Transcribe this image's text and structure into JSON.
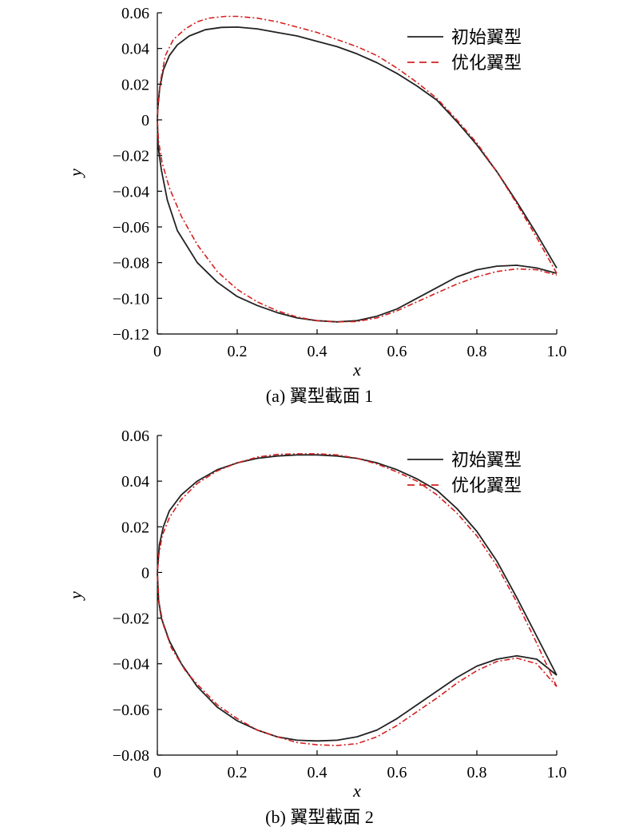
{
  "chart_data": [
    {
      "type": "line",
      "caption": "(a) 翼型截面 1",
      "xlabel": "x",
      "ylabel": "y",
      "xlim": [
        0,
        1.0
      ],
      "ylim": [
        -0.12,
        0.06
      ],
      "xticks": [
        0,
        0.2,
        0.4,
        0.6,
        0.8,
        1.0
      ],
      "xtick_labels": [
        "0",
        "0.2",
        "0.4",
        "0.6",
        "0.8",
        "1.0"
      ],
      "yticks": [
        0.06,
        0.04,
        0.02,
        0,
        -0.02,
        -0.04,
        -0.06,
        -0.08,
        -0.1,
        -0.12
      ],
      "ytick_labels": [
        "0.06",
        "0.04",
        "0.02",
        "0",
        "−0.02",
        "−0.04",
        "−0.06",
        "−0.08",
        "−0.10",
        "−0.12"
      ],
      "legend_position": "top-right",
      "series": [
        {
          "name": "初始翼型",
          "color": "#222222",
          "style": "solid",
          "points": [
            [
              1.0,
              -0.083
            ],
            [
              0.95,
              -0.064
            ],
            [
              0.9,
              -0.046
            ],
            [
              0.85,
              -0.029
            ],
            [
              0.8,
              -0.014
            ],
            [
              0.75,
              -0.001
            ],
            [
              0.7,
              0.011
            ],
            [
              0.65,
              0.019
            ],
            [
              0.6,
              0.026
            ],
            [
              0.55,
              0.032
            ],
            [
              0.5,
              0.037
            ],
            [
              0.45,
              0.041
            ],
            [
              0.4,
              0.044
            ],
            [
              0.35,
              0.047
            ],
            [
              0.3,
              0.049
            ],
            [
              0.25,
              0.051
            ],
            [
              0.2,
              0.052
            ],
            [
              0.16,
              0.0518
            ],
            [
              0.12,
              0.0505
            ],
            [
              0.08,
              0.047
            ],
            [
              0.05,
              0.042
            ],
            [
              0.03,
              0.036
            ],
            [
              0.015,
              0.028
            ],
            [
              0.006,
              0.018
            ],
            [
              0.001,
              0.006
            ],
            [
              0,
              0
            ],
            [
              0.002,
              -0.015
            ],
            [
              0.01,
              -0.028
            ],
            [
              0.025,
              -0.045
            ],
            [
              0.05,
              -0.062
            ],
            [
              0.1,
              -0.08
            ],
            [
              0.15,
              -0.091
            ],
            [
              0.2,
              -0.099
            ],
            [
              0.25,
              -0.104
            ],
            [
              0.3,
              -0.108
            ],
            [
              0.35,
              -0.111
            ],
            [
              0.4,
              -0.1125
            ],
            [
              0.45,
              -0.1132
            ],
            [
              0.5,
              -0.1125
            ],
            [
              0.55,
              -0.11
            ],
            [
              0.6,
              -0.106
            ],
            [
              0.65,
              -0.1
            ],
            [
              0.7,
              -0.094
            ],
            [
              0.75,
              -0.088
            ],
            [
              0.8,
              -0.084
            ],
            [
              0.85,
              -0.082
            ],
            [
              0.9,
              -0.0815
            ],
            [
              0.95,
              -0.083
            ],
            [
              1.0,
              -0.086
            ]
          ]
        },
        {
          "name": "优化翼型",
          "color": "#d42020",
          "style": "dashdot",
          "points": [
            [
              1.0,
              -0.086
            ],
            [
              0.95,
              -0.066
            ],
            [
              0.9,
              -0.047
            ],
            [
              0.85,
              -0.029
            ],
            [
              0.8,
              -0.013
            ],
            [
              0.75,
              0.0
            ],
            [
              0.7,
              0.012
            ],
            [
              0.65,
              0.021
            ],
            [
              0.6,
              0.029
            ],
            [
              0.55,
              0.036
            ],
            [
              0.5,
              0.041
            ],
            [
              0.45,
              0.045
            ],
            [
              0.4,
              0.049
            ],
            [
              0.35,
              0.052
            ],
            [
              0.3,
              0.055
            ],
            [
              0.25,
              0.057
            ],
            [
              0.2,
              0.058
            ],
            [
              0.17,
              0.058
            ],
            [
              0.13,
              0.057
            ],
            [
              0.1,
              0.055
            ],
            [
              0.07,
              0.051
            ],
            [
              0.04,
              0.045
            ],
            [
              0.02,
              0.036
            ],
            [
              0.008,
              0.022
            ],
            [
              0.002,
              0.01
            ],
            [
              0,
              0
            ],
            [
              0.003,
              -0.012
            ],
            [
              0.012,
              -0.024
            ],
            [
              0.03,
              -0.038
            ],
            [
              0.06,
              -0.054
            ],
            [
              0.1,
              -0.07
            ],
            [
              0.15,
              -0.085
            ],
            [
              0.2,
              -0.095
            ],
            [
              0.25,
              -0.102
            ],
            [
              0.3,
              -0.107
            ],
            [
              0.35,
              -0.1105
            ],
            [
              0.4,
              -0.1125
            ],
            [
              0.45,
              -0.1132
            ],
            [
              0.5,
              -0.113
            ],
            [
              0.55,
              -0.111
            ],
            [
              0.6,
              -0.107
            ],
            [
              0.65,
              -0.102
            ],
            [
              0.7,
              -0.097
            ],
            [
              0.75,
              -0.092
            ],
            [
              0.8,
              -0.088
            ],
            [
              0.85,
              -0.085
            ],
            [
              0.9,
              -0.0835
            ],
            [
              0.95,
              -0.084
            ],
            [
              1.0,
              -0.087
            ]
          ]
        }
      ]
    },
    {
      "type": "line",
      "caption": "(b) 翼型截面 2",
      "xlabel": "x",
      "ylabel": "y",
      "xlim": [
        0,
        1.0
      ],
      "ylim": [
        -0.08,
        0.06
      ],
      "xticks": [
        0,
        0.2,
        0.4,
        0.6,
        0.8,
        1.0
      ],
      "xtick_labels": [
        "0",
        "0.2",
        "0.4",
        "0.6",
        "0.8",
        "1.0"
      ],
      "yticks": [
        0.06,
        0.04,
        0.02,
        0,
        -0.02,
        -0.04,
        -0.06,
        -0.08
      ],
      "ytick_labels": [
        "0.06",
        "0.04",
        "0.02",
        "0",
        "−0.02",
        "−0.04",
        "−0.06",
        "−0.08"
      ],
      "legend_position": "top-right",
      "series": [
        {
          "name": "初始翼型",
          "color": "#222222",
          "style": "solid",
          "points": [
            [
              1.0,
              -0.045
            ],
            [
              0.95,
              -0.028
            ],
            [
              0.9,
              -0.011
            ],
            [
              0.85,
              0.005
            ],
            [
              0.8,
              0.018
            ],
            [
              0.75,
              0.028
            ],
            [
              0.7,
              0.036
            ],
            [
              0.65,
              0.041
            ],
            [
              0.6,
              0.045
            ],
            [
              0.55,
              0.048
            ],
            [
              0.5,
              0.05
            ],
            [
              0.45,
              0.051
            ],
            [
              0.4,
              0.0515
            ],
            [
              0.35,
              0.0515
            ],
            [
              0.3,
              0.051
            ],
            [
              0.25,
              0.05
            ],
            [
              0.2,
              0.048
            ],
            [
              0.15,
              0.045
            ],
            [
              0.1,
              0.04
            ],
            [
              0.06,
              0.034
            ],
            [
              0.03,
              0.027
            ],
            [
              0.015,
              0.02
            ],
            [
              0.005,
              0.012
            ],
            [
              0,
              0
            ],
            [
              0.003,
              -0.012
            ],
            [
              0.01,
              -0.02
            ],
            [
              0.03,
              -0.03
            ],
            [
              0.06,
              -0.04
            ],
            [
              0.1,
              -0.05
            ],
            [
              0.15,
              -0.059
            ],
            [
              0.2,
              -0.065
            ],
            [
              0.25,
              -0.069
            ],
            [
              0.3,
              -0.072
            ],
            [
              0.35,
              -0.0735
            ],
            [
              0.4,
              -0.0738
            ],
            [
              0.45,
              -0.0735
            ],
            [
              0.5,
              -0.072
            ],
            [
              0.55,
              -0.069
            ],
            [
              0.6,
              -0.064
            ],
            [
              0.65,
              -0.058
            ],
            [
              0.7,
              -0.052
            ],
            [
              0.75,
              -0.046
            ],
            [
              0.8,
              -0.041
            ],
            [
              0.85,
              -0.038
            ],
            [
              0.9,
              -0.0365
            ],
            [
              0.95,
              -0.038
            ],
            [
              1.0,
              -0.045
            ]
          ]
        },
        {
          "name": "优化翼型",
          "color": "#d42020",
          "style": "dashdot",
          "points": [
            [
              1.0,
              -0.05
            ],
            [
              0.95,
              -0.031
            ],
            [
              0.9,
              -0.013
            ],
            [
              0.85,
              0.003
            ],
            [
              0.8,
              0.016
            ],
            [
              0.75,
              0.026
            ],
            [
              0.7,
              0.034
            ],
            [
              0.65,
              0.04
            ],
            [
              0.6,
              0.044
            ],
            [
              0.55,
              0.0475
            ],
            [
              0.5,
              0.05
            ],
            [
              0.45,
              0.0515
            ],
            [
              0.4,
              0.052
            ],
            [
              0.35,
              0.052
            ],
            [
              0.3,
              0.0517
            ],
            [
              0.25,
              0.0505
            ],
            [
              0.2,
              0.048
            ],
            [
              0.15,
              0.0445
            ],
            [
              0.1,
              0.039
            ],
            [
              0.06,
              0.032
            ],
            [
              0.03,
              0.024
            ],
            [
              0.012,
              0.016
            ],
            [
              0.004,
              0.008
            ],
            [
              0,
              0
            ],
            [
              0.004,
              -0.013
            ],
            [
              0.015,
              -0.023
            ],
            [
              0.035,
              -0.033
            ],
            [
              0.07,
              -0.043
            ],
            [
              0.1,
              -0.049
            ],
            [
              0.15,
              -0.058
            ],
            [
              0.2,
              -0.064
            ],
            [
              0.25,
              -0.069
            ],
            [
              0.3,
              -0.072
            ],
            [
              0.35,
              -0.0745
            ],
            [
              0.4,
              -0.0755
            ],
            [
              0.45,
              -0.0758
            ],
            [
              0.5,
              -0.075
            ],
            [
              0.55,
              -0.072
            ],
            [
              0.6,
              -0.067
            ],
            [
              0.65,
              -0.061
            ],
            [
              0.7,
              -0.055
            ],
            [
              0.75,
              -0.0485
            ],
            [
              0.8,
              -0.043
            ],
            [
              0.85,
              -0.039
            ],
            [
              0.9,
              -0.0375
            ],
            [
              0.95,
              -0.04
            ],
            [
              1.0,
              -0.05
            ]
          ]
        }
      ]
    }
  ]
}
